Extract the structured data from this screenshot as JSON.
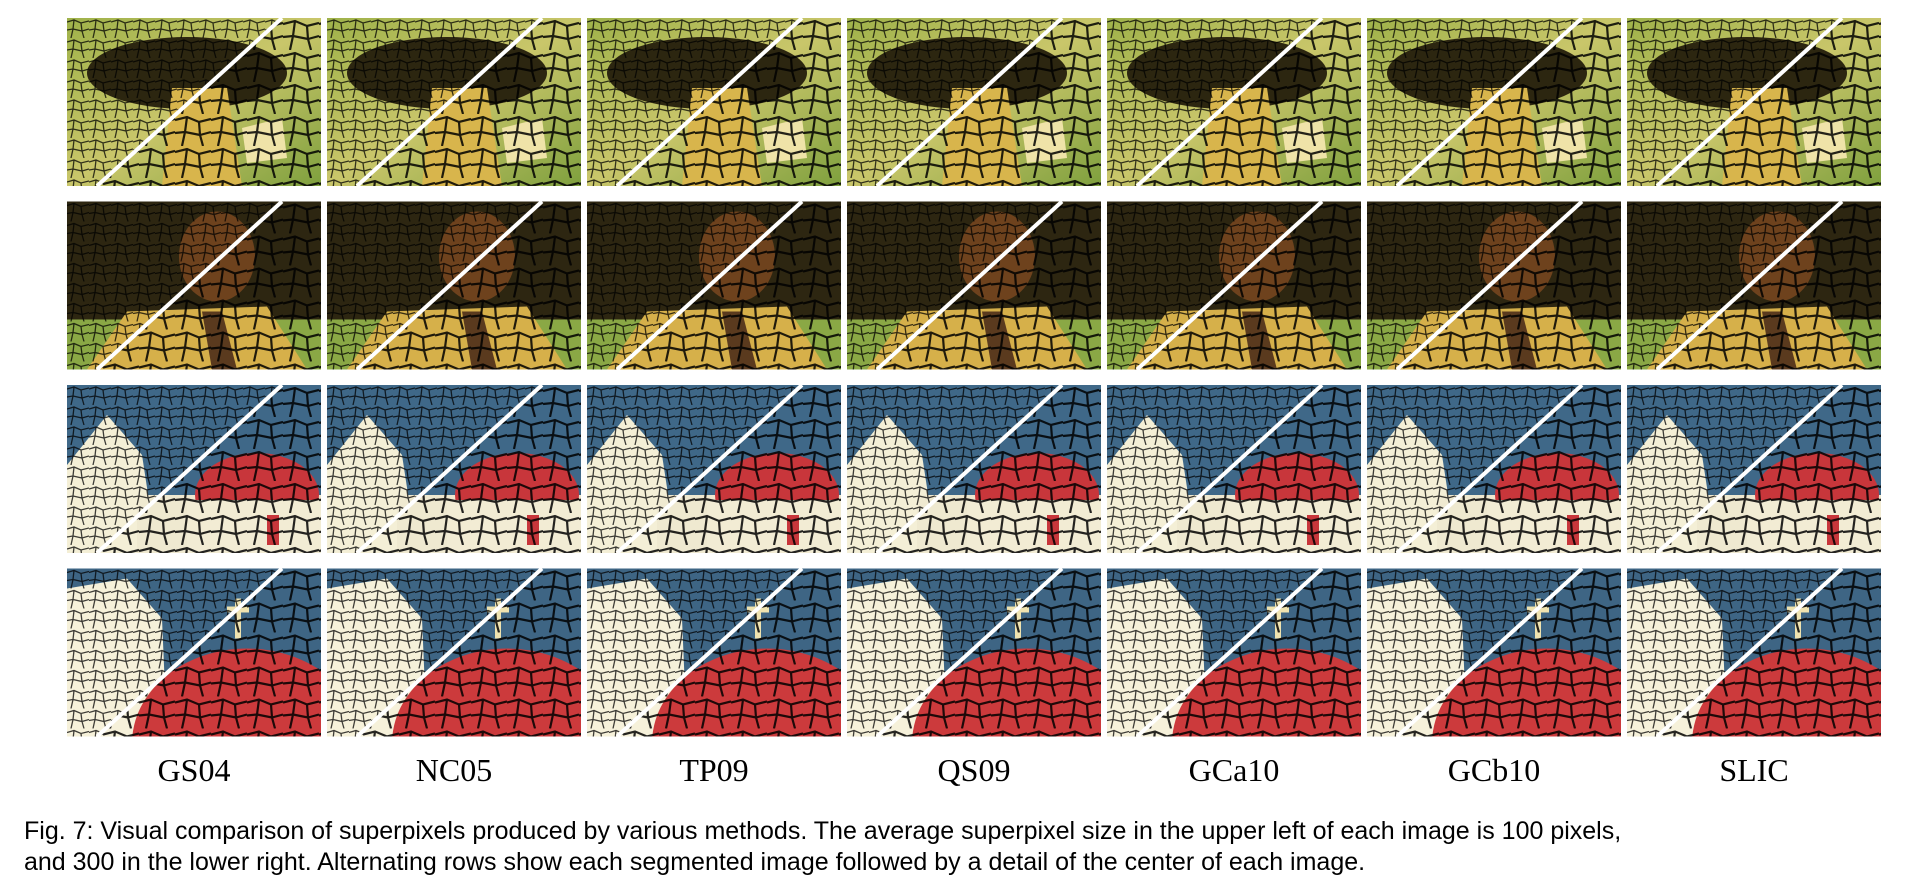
{
  "figure": {
    "columns": [
      "GS04",
      "NC05",
      "TP09",
      "QS09",
      "GCa10",
      "GCb10",
      "SLIC"
    ],
    "caption_lines": [
      "Fig. 7: Visual comparison of superpixels produced by various methods. The average superpixel size in the upper left of each image is 100 pixels,",
      "and 300 in the lower right. Alternating rows show each segmented image followed by a detail of the center of each image."
    ]
  }
}
